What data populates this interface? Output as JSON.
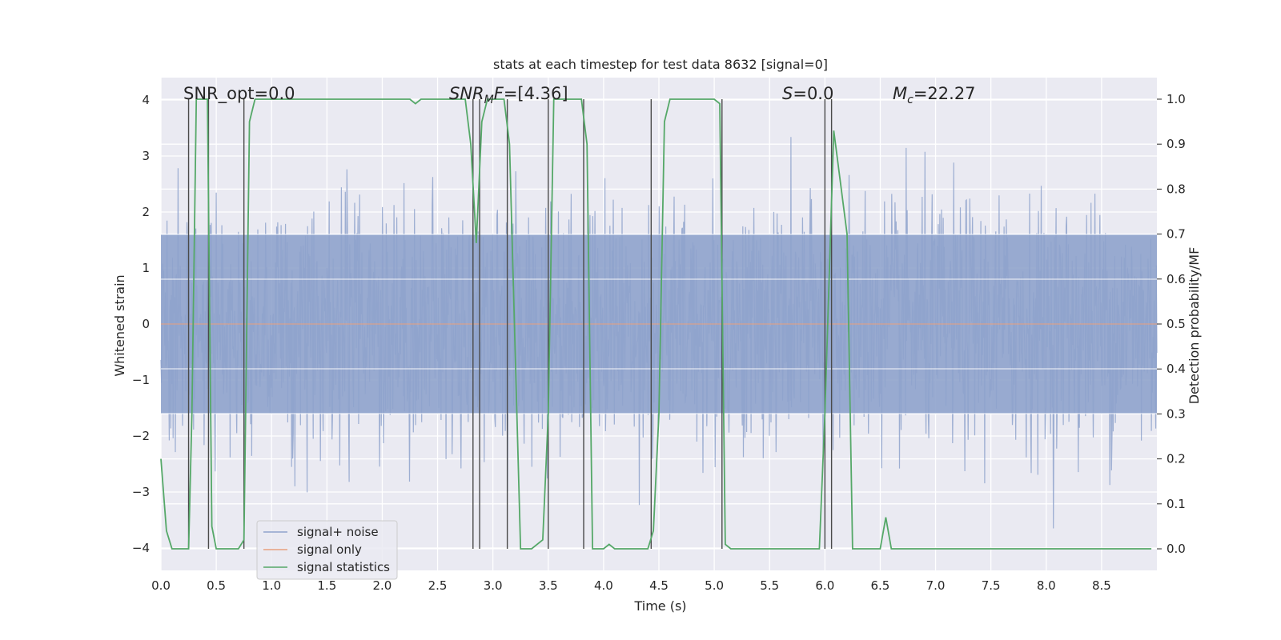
{
  "chart_data": {
    "type": "line",
    "title": "stats at each timestep for test data 8632 [signal=0]",
    "xlabel": "Time (s)",
    "ylabel": "Whitened strain",
    "y2label": "Detection probability/MF",
    "xlim": [
      0.0,
      9.0
    ],
    "ylim": [
      -4.4,
      4.4
    ],
    "y2lim": [
      -0.048,
      1.048
    ],
    "xticks": [
      "0.0",
      "0.5",
      "1.0",
      "1.5",
      "2.0",
      "2.5",
      "3.0",
      "3.5",
      "4.0",
      "4.5",
      "5.0",
      "5.5",
      "6.0",
      "6.5",
      "7.0",
      "7.5",
      "8.0",
      "8.5"
    ],
    "yticks": [
      "4",
      "3",
      "2",
      "1",
      "0",
      "−1",
      "−2",
      "−3",
      "−4"
    ],
    "y2ticks": [
      "1.0",
      "0.9",
      "0.8",
      "0.7",
      "0.6",
      "0.5",
      "0.4",
      "0.3",
      "0.2",
      "0.1",
      "0.0"
    ],
    "grid": true,
    "legend_position": "lower-left",
    "annotations": {
      "snr_opt": "SNR_opt=0.0",
      "snr_mf_italic": "SNR",
      "snr_mf_sub": "M",
      "snr_mf_tail": "F",
      "snr_mf_value": "=[4.36]",
      "s_symbol": "S",
      "s_value": "=0.0",
      "mc_symbol": "M",
      "mc_sub": "c",
      "mc_value": "=22.27"
    },
    "series": [
      {
        "name": "signal+ noise",
        "color": "#8fa3cc",
        "description_of_values": "whitened strain noise, approx gaussian, |y| mostly < 2.5, peaks to about 4",
        "envelope": {
          "typical_abs": 1.6,
          "peak_abs": 3.9
        }
      },
      {
        "name": "signal only",
        "color": "#e8a07e",
        "values": []
      },
      {
        "name": "signal statistics",
        "color": "#55a868",
        "x": [
          0.0,
          0.05,
          0.1,
          0.15,
          0.25,
          0.28,
          0.32,
          0.38,
          0.42,
          0.46,
          0.5,
          0.6,
          0.7,
          0.75,
          0.8,
          0.85,
          0.9,
          1.0,
          1.5,
          2.0,
          2.25,
          2.3,
          2.35,
          2.5,
          2.75,
          2.8,
          2.85,
          2.9,
          2.95,
          3.0,
          3.05,
          3.1,
          3.15,
          3.25,
          3.3,
          3.35,
          3.45,
          3.5,
          3.55,
          3.6,
          3.7,
          3.8,
          3.85,
          3.9,
          4.0,
          4.05,
          4.1,
          4.2,
          4.4,
          4.45,
          4.5,
          4.55,
          4.6,
          4.7,
          5.0,
          5.05,
          5.1,
          5.15,
          5.2,
          5.3,
          5.5,
          5.8,
          5.95,
          6.0,
          6.08,
          6.2,
          6.25,
          6.3,
          6.4,
          6.5,
          6.55,
          6.6,
          6.7,
          7.0,
          8.0,
          8.95
        ],
        "values": [
          0.2,
          0.04,
          0.0,
          0.0,
          0.0,
          0.3,
          1.0,
          1.0,
          1.0,
          0.05,
          0.0,
          0.0,
          0.0,
          0.02,
          0.95,
          1.0,
          1.0,
          1.0,
          1.0,
          1.0,
          1.0,
          0.99,
          1.0,
          1.0,
          1.0,
          0.9,
          0.68,
          0.95,
          1.0,
          1.0,
          1.0,
          1.0,
          0.9,
          0.0,
          0.0,
          0.0,
          0.02,
          0.3,
          1.0,
          1.0,
          1.0,
          1.0,
          0.9,
          0.0,
          0.0,
          0.01,
          0.0,
          0.0,
          0.0,
          0.04,
          0.3,
          0.95,
          1.0,
          1.0,
          1.0,
          0.99,
          0.01,
          0.0,
          0.0,
          0.0,
          0.0,
          0.0,
          0.0,
          0.3,
          0.93,
          0.7,
          0.0,
          0.0,
          0.0,
          0.0,
          0.07,
          0.0,
          0.0,
          0.0,
          0.0,
          0.0
        ]
      }
    ],
    "event_markers_x": [
      0.25,
      0.43,
      0.75,
      2.82,
      2.88,
      3.13,
      3.5,
      3.82,
      4.43,
      5.07,
      6.0,
      6.06
    ]
  },
  "legend": {
    "items": [
      {
        "label": "signal+ noise",
        "color": "#8fa3cc"
      },
      {
        "label": "signal only",
        "color": "#e8a07e"
      },
      {
        "label": "signal statistics",
        "color": "#55a868"
      }
    ]
  }
}
